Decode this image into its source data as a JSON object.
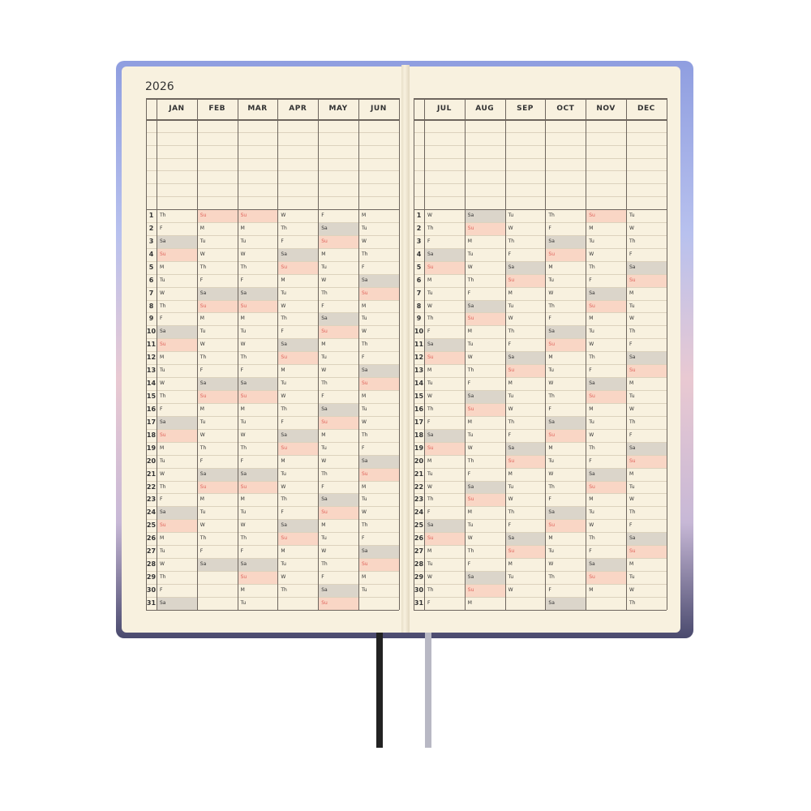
{
  "year": "2026",
  "day_numbers": [
    1,
    2,
    3,
    4,
    5,
    6,
    7,
    8,
    9,
    10,
    11,
    12,
    13,
    14,
    15,
    16,
    17,
    18,
    19,
    20,
    21,
    22,
    23,
    24,
    25,
    26,
    27,
    28,
    29,
    30,
    31
  ],
  "colors": {
    "page": "#f8f1df",
    "saturday_fill": "#dbd5ca",
    "sunday_fill": "#f9d6c5",
    "sunday_text": "#e0625a",
    "ribbon_left": "#222222",
    "ribbon_right": "#b8b8c4"
  },
  "left_page": {
    "months": [
      {
        "name": "JAN",
        "days": [
          "Th",
          "F",
          "Sa",
          "Su",
          "M",
          "Tu",
          "W",
          "Th",
          "F",
          "Sa",
          "Su",
          "M",
          "Tu",
          "W",
          "Th",
          "F",
          "Sa",
          "Su",
          "M",
          "Tu",
          "W",
          "Th",
          "F",
          "Sa",
          "Su",
          "M",
          "Tu",
          "W",
          "Th",
          "F",
          "Sa"
        ]
      },
      {
        "name": "FEB",
        "days": [
          "Su",
          "M",
          "Tu",
          "W",
          "Th",
          "F",
          "Sa",
          "Su",
          "M",
          "Tu",
          "W",
          "Th",
          "F",
          "Sa",
          "Su",
          "M",
          "Tu",
          "W",
          "Th",
          "F",
          "Sa",
          "Su",
          "M",
          "Tu",
          "W",
          "Th",
          "F",
          "Sa"
        ]
      },
      {
        "name": "MAR",
        "days": [
          "Su",
          "M",
          "Tu",
          "W",
          "Th",
          "F",
          "Sa",
          "Su",
          "M",
          "Tu",
          "W",
          "Th",
          "F",
          "Sa",
          "Su",
          "M",
          "Tu",
          "W",
          "Th",
          "F",
          "Sa",
          "Su",
          "M",
          "Tu",
          "W",
          "Th",
          "F",
          "Sa",
          "Su",
          "M",
          "Tu"
        ]
      },
      {
        "name": "APR",
        "days": [
          "W",
          "Th",
          "F",
          "Sa",
          "Su",
          "M",
          "Tu",
          "W",
          "Th",
          "F",
          "Sa",
          "Su",
          "M",
          "Tu",
          "W",
          "Th",
          "F",
          "Sa",
          "Su",
          "M",
          "Tu",
          "W",
          "Th",
          "F",
          "Sa",
          "Su",
          "M",
          "Tu",
          "W",
          "Th"
        ]
      },
      {
        "name": "MAY",
        "days": [
          "F",
          "Sa",
          "Su",
          "M",
          "Tu",
          "W",
          "Th",
          "F",
          "Sa",
          "Su",
          "M",
          "Tu",
          "W",
          "Th",
          "F",
          "Sa",
          "Su",
          "M",
          "Tu",
          "W",
          "Th",
          "F",
          "Sa",
          "Su",
          "M",
          "Tu",
          "W",
          "Th",
          "F",
          "Sa",
          "Su"
        ]
      },
      {
        "name": "JUN",
        "days": [
          "M",
          "Tu",
          "W",
          "Th",
          "F",
          "Sa",
          "Su",
          "M",
          "Tu",
          "W",
          "Th",
          "F",
          "Sa",
          "Su",
          "M",
          "Tu",
          "W",
          "Th",
          "F",
          "Sa",
          "Su",
          "M",
          "Tu",
          "W",
          "Th",
          "F",
          "Sa",
          "Su",
          "M",
          "Tu"
        ]
      }
    ]
  },
  "right_page": {
    "months": [
      {
        "name": "JUL",
        "days": [
          "W",
          "Th",
          "F",
          "Sa",
          "Su",
          "M",
          "Tu",
          "W",
          "Th",
          "F",
          "Sa",
          "Su",
          "M",
          "Tu",
          "W",
          "Th",
          "F",
          "Sa",
          "Su",
          "M",
          "Tu",
          "W",
          "Th",
          "F",
          "Sa",
          "Su",
          "M",
          "Tu",
          "W",
          "Th",
          "F"
        ]
      },
      {
        "name": "AUG",
        "days": [
          "Sa",
          "Su",
          "M",
          "Tu",
          "W",
          "Th",
          "F",
          "Sa",
          "Su",
          "M",
          "Tu",
          "W",
          "Th",
          "F",
          "Sa",
          "Su",
          "M",
          "Tu",
          "W",
          "Th",
          "F",
          "Sa",
          "Su",
          "M",
          "Tu",
          "W",
          "Th",
          "F",
          "Sa",
          "Su",
          "M"
        ]
      },
      {
        "name": "SEP",
        "days": [
          "Tu",
          "W",
          "Th",
          "F",
          "Sa",
          "Su",
          "M",
          "Tu",
          "W",
          "Th",
          "F",
          "Sa",
          "Su",
          "M",
          "Tu",
          "W",
          "Th",
          "F",
          "Sa",
          "Su",
          "M",
          "Tu",
          "W",
          "Th",
          "F",
          "Sa",
          "Su",
          "M",
          "Tu",
          "W"
        ]
      },
      {
        "name": "OCT",
        "days": [
          "Th",
          "F",
          "Sa",
          "Su",
          "M",
          "Tu",
          "W",
          "Th",
          "F",
          "Sa",
          "Su",
          "M",
          "Tu",
          "W",
          "Th",
          "F",
          "Sa",
          "Su",
          "M",
          "Tu",
          "W",
          "Th",
          "F",
          "Sa",
          "Su",
          "M",
          "Tu",
          "W",
          "Th",
          "F",
          "Sa"
        ]
      },
      {
        "name": "NOV",
        "days": [
          "Su",
          "M",
          "Tu",
          "W",
          "Th",
          "F",
          "Sa",
          "Su",
          "M",
          "Tu",
          "W",
          "Th",
          "F",
          "Sa",
          "Su",
          "M",
          "Tu",
          "W",
          "Th",
          "F",
          "Sa",
          "Su",
          "M",
          "Tu",
          "W",
          "Th",
          "F",
          "Sa",
          "Su",
          "M"
        ]
      },
      {
        "name": "DEC",
        "days": [
          "Tu",
          "W",
          "Th",
          "F",
          "Sa",
          "Su",
          "M",
          "Tu",
          "W",
          "Th",
          "F",
          "Sa",
          "Su",
          "M",
          "Tu",
          "W",
          "Th",
          "F",
          "Sa",
          "Su",
          "M",
          "Tu",
          "W",
          "Th",
          "F",
          "Sa",
          "Su",
          "M",
          "Tu",
          "W",
          "Th"
        ]
      }
    ]
  }
}
